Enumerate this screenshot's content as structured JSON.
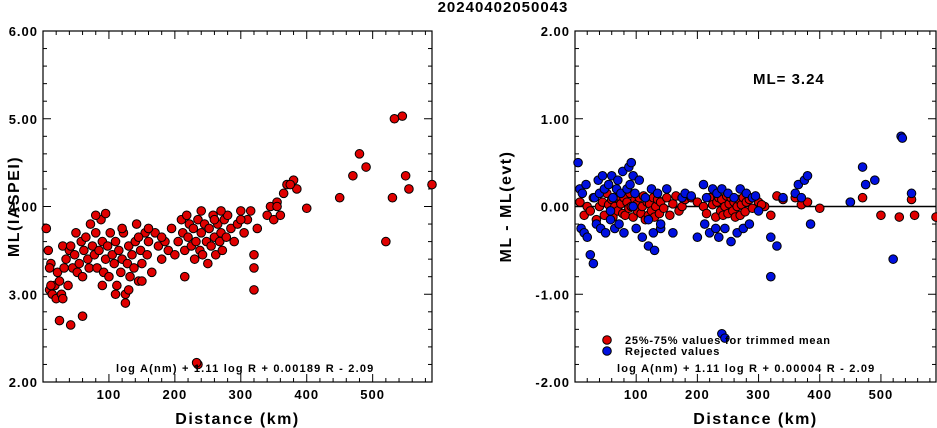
{
  "title": "20240402050043",
  "colors": {
    "red": "#e00000",
    "blue": "#0010e0",
    "edge": "#000000"
  },
  "chart_data": [
    {
      "type": "scatter",
      "xlabel": "Distance (km)",
      "ylabel": "ML(IASPEI)",
      "xlim": [
        0,
        590
      ],
      "ylim": [
        2.0,
        6.0
      ],
      "xticks": [
        100,
        200,
        300,
        400,
        500
      ],
      "xtick_labels": [
        "100",
        "200",
        "300",
        "400",
        "500"
      ],
      "yticks": [
        2.0,
        3.0,
        4.0,
        5.0,
        6.0
      ],
      "ytick_labels": [
        "2.00",
        "3.00",
        "4.00",
        "5.00",
        "6.00"
      ],
      "formula": "log A(nm) + 1.11 log R + 0.00189 R - 2.09",
      "series": [
        {
          "color": "red",
          "x": [
            5,
            8,
            10,
            12,
            14,
            18,
            20,
            22,
            25,
            28,
            30,
            32,
            35,
            38,
            40,
            42,
            45,
            48,
            50,
            52,
            55,
            58,
            60,
            62,
            65,
            68,
            70,
            72,
            75,
            78,
            80,
            82,
            85,
            88,
            90,
            92,
            95,
            98,
            100,
            102,
            105,
            108,
            110,
            112,
            115,
            118,
            120,
            122,
            125,
            128,
            130,
            132,
            135,
            138,
            140,
            142,
            145,
            148,
            150,
            155,
            158,
            160,
            165,
            170,
            175,
            180,
            185,
            190,
            195,
            200,
            205,
            210,
            212,
            215,
            218,
            220,
            222,
            225,
            228,
            230,
            232,
            235,
            238,
            240,
            242,
            245,
            248,
            250,
            252,
            255,
            258,
            260,
            262,
            265,
            268,
            270,
            272,
            275,
            278,
            280,
            285,
            290,
            295,
            300,
            305,
            310,
            315,
            320,
            325,
            340,
            345,
            350,
            355,
            360,
            365,
            370,
            380,
            385,
            400,
            450,
            470,
            480,
            490,
            520,
            530,
            545,
            550,
            555,
            590,
            10,
            12,
            25,
            30,
            42,
            60,
            90,
            110,
            125,
            130,
            150,
            215,
            235,
            320,
            533,
            233,
            80,
            95,
            120,
            145,
            160,
            180,
            240,
            260,
            270,
            300,
            320,
            355,
            375
          ],
          "y": [
            3.75,
            3.5,
            3.05,
            3.35,
            3.0,
            3.1,
            2.95,
            3.25,
            3.15,
            3.0,
            3.55,
            3.3,
            3.4,
            3.1,
            3.5,
            3.55,
            3.3,
            3.45,
            3.7,
            3.25,
            3.35,
            3.6,
            3.2,
            3.5,
            3.65,
            3.4,
            3.3,
            3.8,
            3.55,
            3.45,
            3.7,
            3.3,
            3.5,
            3.85,
            3.6,
            3.25,
            3.4,
            3.55,
            3.2,
            3.7,
            3.45,
            3.35,
            3.6,
            3.1,
            3.5,
            3.25,
            3.4,
            3.7,
            3.0,
            3.35,
            3.55,
            3.2,
            3.45,
            3.3,
            3.6,
            3.8,
            3.15,
            3.5,
            3.35,
            3.7,
            3.45,
            3.6,
            3.25,
            3.7,
            3.55,
            3.4,
            3.6,
            3.5,
            3.75,
            3.45,
            3.6,
            3.85,
            3.7,
            3.5,
            3.9,
            3.65,
            3.8,
            3.55,
            3.75,
            3.4,
            3.6,
            3.85,
            3.5,
            3.7,
            3.45,
            3.8,
            3.6,
            3.35,
            3.75,
            3.55,
            3.9,
            3.65,
            3.45,
            3.8,
            3.6,
            3.7,
            3.5,
            3.85,
            3.65,
            3.9,
            3.75,
            3.6,
            3.8,
            3.95,
            3.7,
            3.85,
            3.95,
            3.45,
            3.75,
            3.9,
            4.0,
            3.85,
            4.05,
            3.9,
            4.15,
            4.25,
            4.3,
            4.2,
            3.98,
            4.1,
            4.35,
            4.6,
            4.45,
            3.6,
            4.1,
            5.03,
            4.35,
            4.2,
            4.25,
            3.3,
            3.1,
            2.7,
            2.95,
            2.65,
            2.75,
            3.1,
            3.0,
            2.9,
            3.05,
            3.15,
            3.2,
            2.2,
            3.05,
            5.0,
            2.22,
            3.9,
            3.92,
            3.75,
            3.65,
            3.75,
            3.65,
            3.95,
            3.85,
            3.95,
            3.85,
            3.3,
            4.0,
            4.25
          ],
          "shape": "circle"
        }
      ]
    },
    {
      "type": "scatter",
      "xlabel": "Distance (km)",
      "ylabel": "ML - ML(evt)",
      "xlim": [
        0,
        590
      ],
      "ylim": [
        -2.0,
        2.0
      ],
      "xticks": [
        100,
        200,
        300,
        400,
        500
      ],
      "xtick_labels": [
        "100",
        "200",
        "300",
        "400",
        "500"
      ],
      "yticks": [
        -2.0,
        -1.0,
        0.0,
        1.0,
        2.0
      ],
      "ytick_labels": [
        "-2.00",
        "-1.00",
        "0.00",
        "1.00",
        "2.00"
      ],
      "zero_line": true,
      "annotation": "ML= 3.24",
      "formula": "log A(nm) + 1.11 log R + 0.00004 R - 2.09",
      "legend": [
        {
          "label": "25%-75% values for trimmed mean",
          "color": "red"
        },
        {
          "label": "Rejected values",
          "color": "blue"
        }
      ],
      "series": [
        {
          "name": "25%-75% values for trimmed mean",
          "color": "red",
          "x": [
            8,
            15,
            20,
            25,
            30,
            35,
            40,
            45,
            48,
            52,
            55,
            58,
            60,
            62,
            65,
            68,
            70,
            72,
            75,
            78,
            80,
            82,
            85,
            88,
            90,
            92,
            95,
            98,
            100,
            102,
            105,
            108,
            110,
            112,
            115,
            118,
            120,
            122,
            125,
            128,
            130,
            132,
            135,
            138,
            140,
            145,
            150,
            155,
            160,
            165,
            170,
            175,
            180,
            190,
            200,
            210,
            215,
            220,
            225,
            230,
            232,
            235,
            238,
            240,
            242,
            245,
            248,
            250,
            252,
            255,
            258,
            260,
            262,
            265,
            268,
            270,
            272,
            275,
            278,
            280,
            285,
            290,
            295,
            300,
            310,
            320,
            330,
            340,
            360,
            370,
            380,
            400,
            450,
            470,
            500,
            530,
            550,
            555,
            590,
            305
          ],
          "y": [
            0.05,
            -0.1,
            0.0,
            -0.05,
            0.1,
            -0.15,
            0.0,
            0.05,
            -0.1,
            0.15,
            0.02,
            -0.05,
            0.08,
            -0.12,
            0.0,
            0.1,
            -0.05,
            0.12,
            0.03,
            -0.08,
            0.1,
            -0.1,
            0.05,
            -0.02,
            0.15,
            0.0,
            -0.12,
            0.08,
            0.02,
            -0.05,
            0.1,
            -0.08,
            0.0,
            0.12,
            -0.15,
            0.05,
            -0.1,
            0.03,
            -0.05,
            0.1,
            -0.12,
            0.0,
            0.08,
            -0.08,
            0.05,
            -0.02,
            0.1,
            -0.1,
            0.03,
            0.12,
            -0.05,
            0.0,
            0.08,
            0.1,
            0.05,
            0.0,
            -0.08,
            0.1,
            0.02,
            -0.12,
            0.05,
            0.1,
            -0.05,
            0.08,
            -0.1,
            0.0,
            0.12,
            -0.08,
            0.03,
            0.1,
            -0.05,
            0.05,
            -0.12,
            0.0,
            0.08,
            -0.1,
            0.02,
            0.1,
            -0.06,
            0.05,
            0.08,
            -0.02,
            0.1,
            0.05,
            0.0,
            -0.1,
            0.12,
            0.08,
            0.1,
            0.02,
            0.05,
            -0.02,
            0.05,
            0.1,
            -0.1,
            -0.12,
            0.08,
            -0.1,
            -0.12,
            0.02
          ],
          "shape": "circle"
        },
        {
          "name": "Rejected values",
          "color": "blue",
          "x": [
            5,
            8,
            10,
            12,
            15,
            18,
            20,
            25,
            30,
            32,
            35,
            38,
            40,
            42,
            45,
            48,
            50,
            55,
            58,
            60,
            62,
            65,
            68,
            70,
            72,
            75,
            78,
            80,
            85,
            88,
            90,
            92,
            95,
            98,
            100,
            105,
            110,
            115,
            120,
            125,
            128,
            130,
            135,
            140,
            150,
            160,
            175,
            180,
            190,
            200,
            210,
            212,
            215,
            220,
            225,
            230,
            232,
            235,
            240,
            245,
            250,
            255,
            260,
            265,
            270,
            275,
            280,
            285,
            290,
            295,
            300,
            320,
            320,
            330,
            340,
            360,
            365,
            370,
            375,
            380,
            385,
            450,
            470,
            475,
            490,
            520,
            533,
            535,
            550,
            58,
            95,
            120,
            140,
            240,
            245
          ],
          "y": [
            0.5,
            0.2,
            -0.25,
            0.15,
            -0.3,
            0.25,
            -0.35,
            -0.55,
            -0.65,
            0.1,
            -0.2,
            0.3,
            0.15,
            -0.25,
            0.35,
            0.2,
            -0.3,
            0.25,
            -0.15,
            0.35,
            0.1,
            -0.25,
            0.2,
            0.3,
            -0.2,
            0.15,
            0.4,
            -0.3,
            0.2,
            0.45,
            0.25,
            0.5,
            0.35,
            0.15,
            -0.25,
            0.3,
            -0.35,
            0.1,
            -0.45,
            0.2,
            -0.3,
            -0.5,
            0.15,
            -0.25,
            0.2,
            -0.3,
            0.1,
            0.15,
            0.12,
            -0.35,
            0.25,
            -0.2,
            0.1,
            -0.3,
            0.2,
            -0.25,
            0.15,
            -0.35,
            0.2,
            -0.25,
            0.15,
            -0.4,
            0.1,
            -0.3,
            0.2,
            -0.25,
            0.15,
            -0.2,
            0.1,
            0.12,
            -0.05,
            -0.35,
            -0.8,
            -0.45,
            0.1,
            0.15,
            0.25,
            0.1,
            0.3,
            0.35,
            -0.2,
            0.05,
            0.45,
            0.25,
            0.3,
            -0.6,
            0.8,
            0.78,
            0.15,
            -0.05,
            0.0,
            -0.15,
            -0.2,
            -1.45,
            -1.5
          ],
          "shape": "circle"
        }
      ]
    }
  ]
}
